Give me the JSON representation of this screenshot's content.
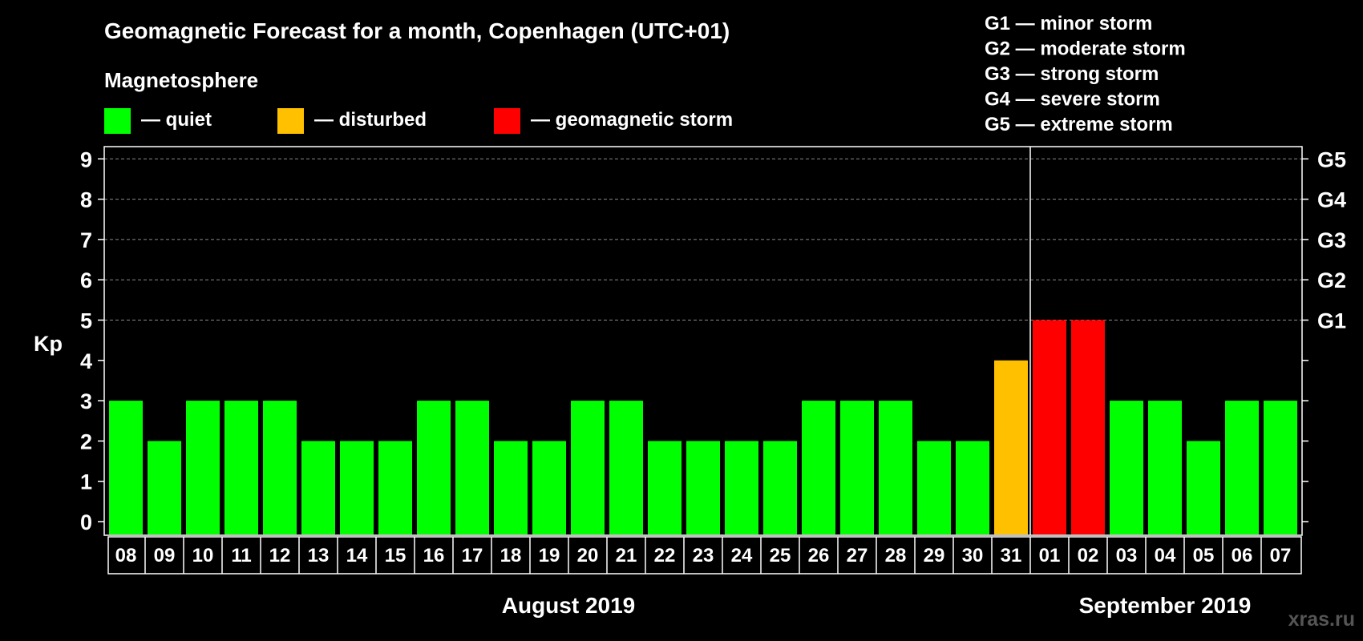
{
  "chart_data": {
    "type": "bar",
    "title": "Geomagnetic Forecast for a month, Copenhagen (UTC+01)",
    "subtitle": "Magnetosphere",
    "ylabel": "Kp",
    "ylim": [
      0,
      9
    ],
    "yticks": [
      "0",
      "1",
      "2",
      "3",
      "4",
      "5",
      "6",
      "7",
      "8",
      "9"
    ],
    "grid": true,
    "categories": [
      "08",
      "09",
      "10",
      "11",
      "12",
      "13",
      "14",
      "15",
      "16",
      "17",
      "18",
      "19",
      "20",
      "21",
      "22",
      "23",
      "24",
      "25",
      "26",
      "27",
      "28",
      "29",
      "30",
      "31",
      "01",
      "02",
      "03",
      "04",
      "05",
      "06",
      "07"
    ],
    "values": [
      3,
      2,
      3,
      3,
      3,
      2,
      2,
      2,
      3,
      3,
      2,
      2,
      3,
      3,
      2,
      2,
      2,
      2,
      3,
      3,
      3,
      2,
      2,
      4,
      5,
      5,
      3,
      3,
      2,
      3,
      3
    ],
    "colors": [
      "#00ff00",
      "#00ff00",
      "#00ff00",
      "#00ff00",
      "#00ff00",
      "#00ff00",
      "#00ff00",
      "#00ff00",
      "#00ff00",
      "#00ff00",
      "#00ff00",
      "#00ff00",
      "#00ff00",
      "#00ff00",
      "#00ff00",
      "#00ff00",
      "#00ff00",
      "#00ff00",
      "#00ff00",
      "#00ff00",
      "#00ff00",
      "#00ff00",
      "#00ff00",
      "#ffc000",
      "#ff0000",
      "#ff0000",
      "#00ff00",
      "#00ff00",
      "#00ff00",
      "#00ff00",
      "#00ff00"
    ],
    "months": [
      {
        "label": "August 2019",
        "first": 0,
        "last": 23
      },
      {
        "label": "September 2019",
        "first": 24,
        "last": 30
      }
    ],
    "month_divider_after_index": 23,
    "status_legend": [
      {
        "label": "— quiet",
        "color": "#00ff00"
      },
      {
        "label": "— disturbed",
        "color": "#ffc000"
      },
      {
        "label": "— geomagnetic storm",
        "color": "#ff0000"
      }
    ],
    "g_scale_legend": [
      "G1 — minor storm",
      "G2 — moderate storm",
      "G3 — strong storm",
      "G4 — severe storm",
      "G5 — extreme storm"
    ],
    "right_axis_labels": [
      {
        "kp": 5,
        "label": "G1"
      },
      {
        "kp": 6,
        "label": "G2"
      },
      {
        "kp": 7,
        "label": "G3"
      },
      {
        "kp": 8,
        "label": "G4"
      },
      {
        "kp": 9,
        "label": "G5"
      }
    ]
  },
  "watermark": "xras.ru"
}
